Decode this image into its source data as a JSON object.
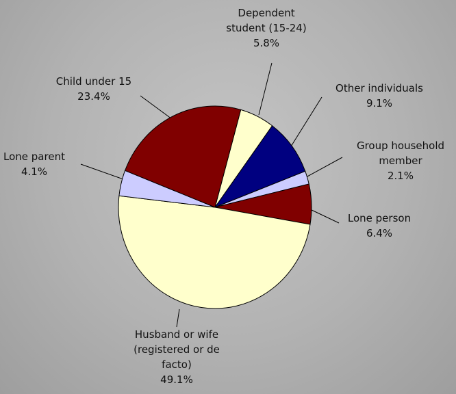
{
  "chart_data": {
    "type": "pie",
    "categories": [
      "Dependent student (15-24)",
      "Other individuals",
      "Group household member",
      "Lone person",
      "Husband or wife (registered or de facto)",
      "Lone parent",
      "Child under 15"
    ],
    "values": [
      5.8,
      9.1,
      2.1,
      6.4,
      49.1,
      4.1,
      23.4
    ],
    "value_labels": [
      "5.8%",
      "9.1%",
      "2.1%",
      "6.4%",
      "49.1%",
      "4.1%",
      "23.4%"
    ],
    "colors": [
      "#ffffcc",
      "#000080",
      "#ccccff",
      "#800000",
      "#ffffcc",
      "#ccccff",
      "#800000"
    ]
  }
}
